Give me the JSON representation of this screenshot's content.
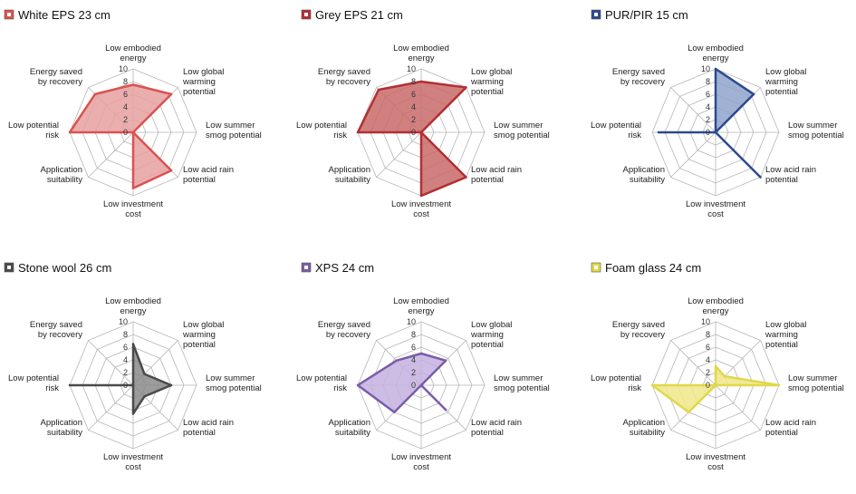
{
  "chart_data": [
    {
      "type": "radar",
      "title": "White EPS 23 cm",
      "color": "#d9534f",
      "fill": "#e8a0a0",
      "axes": [
        "Low embodied energy",
        "Low global warming potential",
        "Low summer smog potential",
        "Low acid rain potential",
        "Low investment cost",
        "Application suitability",
        "Low potential risk",
        "Energy saved by recovery"
      ],
      "ticks": [
        0,
        2,
        4,
        6,
        8,
        10
      ],
      "rmax": 10,
      "values": [
        7.5,
        8.5,
        0,
        8.5,
        8.8,
        0,
        10,
        8.5
      ]
    },
    {
      "type": "radar",
      "title": "Grey EPS 21 cm",
      "color": "#b22f33",
      "fill": "#c96a6a",
      "axes": [
        "Low embodied energy",
        "Low global warming potential",
        "Low summer smog potential",
        "Low acid rain potential",
        "Low investment cost",
        "Application suitability",
        "Low potential risk",
        "Energy saved by recovery"
      ],
      "ticks": [
        0,
        2,
        4,
        6,
        8,
        10
      ],
      "rmax": 10,
      "values": [
        8,
        10,
        0,
        10,
        10,
        0,
        10,
        9.5
      ]
    },
    {
      "type": "radar",
      "title": "PUR/PIR 15 cm",
      "color": "#2c4a8c",
      "fill": "#8fa3cc",
      "axes": [
        "Low embodied energy",
        "Low global warming potential",
        "Low summer smog potential",
        "Low acid rain potential",
        "Low investment cost",
        "Application suitability",
        "Low potential risk",
        "Energy saved by recovery"
      ],
      "ticks": [
        0,
        2,
        4,
        6,
        8,
        10
      ],
      "rmax": 10,
      "values": [
        10,
        8.5,
        0,
        10,
        0,
        0,
        9,
        0
      ]
    },
    {
      "type": "radar",
      "title": "Stone wool 26 cm",
      "color": "#4a4a4a",
      "fill": "#8a8a8a",
      "axes": [
        "Low embodied energy",
        "Low global warming potential",
        "Low summer smog potential",
        "Low acid rain potential",
        "Low investment cost",
        "Application suitability",
        "Low potential risk",
        "Energy saved by recovery"
      ],
      "ticks": [
        0,
        2,
        4,
        6,
        8,
        10
      ],
      "rmax": 10,
      "values": [
        6.5,
        2.5,
        6,
        2.5,
        4.5,
        0,
        10,
        0
      ]
    },
    {
      "type": "radar",
      "title": "XPS 24 cm",
      "color": "#7a5ca8",
      "fill": "#c4b2e0",
      "axes": [
        "Low embodied energy",
        "Low global warming potential",
        "Low summer smog potential",
        "Low acid rain potential",
        "Low investment cost",
        "Application suitability",
        "Low potential risk",
        "Energy saved by recovery"
      ],
      "ticks": [
        0,
        2,
        4,
        6,
        8,
        10
      ],
      "rmax": 10,
      "values": [
        5,
        5.5,
        0,
        5.5,
        0,
        6,
        10,
        5.5
      ]
    },
    {
      "type": "radar",
      "title": "Foam glass 24 cm",
      "color": "#e0d84a",
      "fill": "#eee78a",
      "axes": [
        "Low embodied energy",
        "Low global warming potential",
        "Low summer smog potential",
        "Low acid rain potential",
        "Low investment cost",
        "Application suitability",
        "Low potential risk",
        "Energy saved by recovery"
      ],
      "ticks": [
        0,
        2,
        4,
        6,
        8,
        10
      ],
      "rmax": 10,
      "values": [
        3,
        2,
        10,
        0,
        0,
        6,
        10,
        0
      ]
    }
  ]
}
